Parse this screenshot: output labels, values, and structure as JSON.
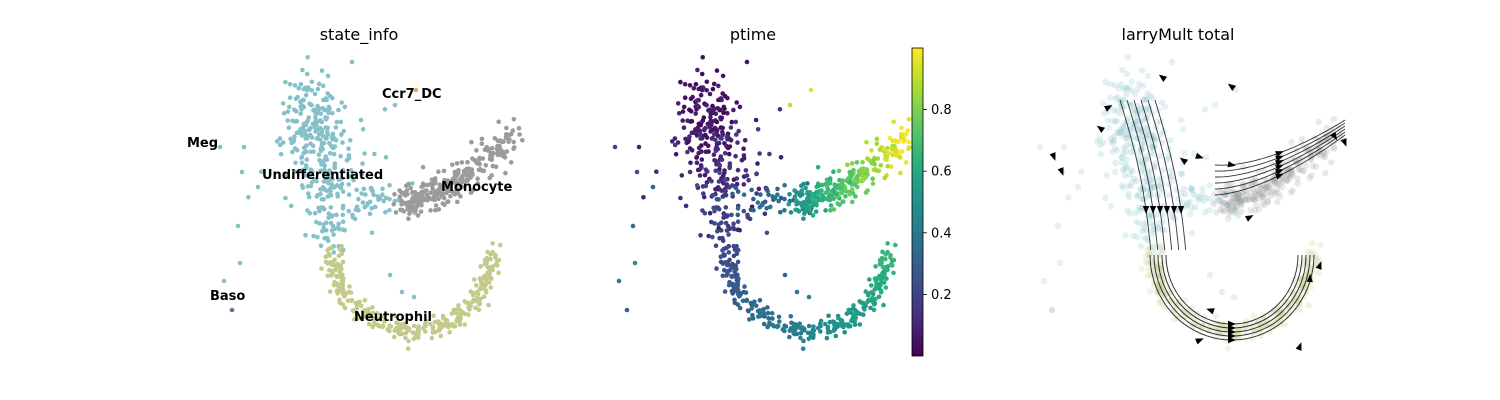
{
  "chart_data": [
    {
      "type": "scatter",
      "title": "state_info",
      "colors": {
        "Undifferentiated": "#86c1ca",
        "Monocyte": "#9b9b9b",
        "Neutrophil": "#c4c98c",
        "Meg": "#86c1ca",
        "Baso": "#5a7896",
        "Ccr7_DC": "#f2a35e"
      },
      "categories": [
        "Meg",
        "Ccr7_DC",
        "Undifferentiated",
        "Monocyte",
        "Baso",
        "Neutrophil"
      ]
    },
    {
      "type": "scatter",
      "title": "ptime",
      "colorbar": {
        "ticks": [
          "0.2",
          "0.4",
          "0.6",
          "0.8"
        ],
        "tick_values": [
          0.2,
          0.4,
          0.6,
          0.8
        ],
        "range": [
          0.0,
          1.0
        ]
      }
    },
    {
      "type": "scatter",
      "title": "larryMult total",
      "overlay": "streamlines"
    }
  ]
}
